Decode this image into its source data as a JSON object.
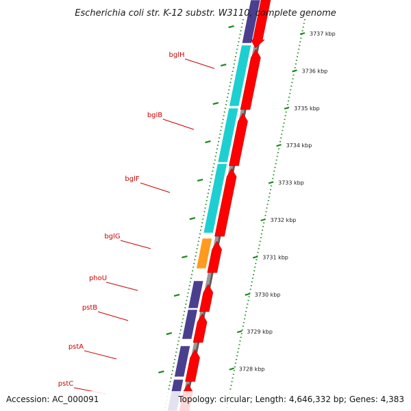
{
  "title": "Escherichia coli str. K-12 substr. W3110, complete genome",
  "footer": {
    "accession": "Accession: AC_000091",
    "summary": "Topology: circular; Length: 4,646,332 bp; Genes: 4,383"
  },
  "colors": {
    "forward_cds": "#ff0000",
    "cog_cyan": "#1ecfd2",
    "cog_purple": "#4a3f8f",
    "cog_orange": "#ff9a1e",
    "label": "#cc0000",
    "tick": "#1e8a1e",
    "backbone": "#888888"
  },
  "genes": [
    {
      "label": "bglH",
      "category_color": "cog_cyan"
    },
    {
      "label": "bglB",
      "category_color": "cog_cyan"
    },
    {
      "label": "bglF",
      "category_color": "cog_cyan"
    },
    {
      "label": "bglG",
      "category_color": "cog_orange"
    },
    {
      "label": "phoU",
      "category_color": "cog_purple"
    },
    {
      "label": "pstB",
      "category_color": "cog_purple"
    },
    {
      "label": "pstA",
      "category_color": "cog_purple"
    },
    {
      "label": "pstC",
      "category_color": "cog_purple"
    }
  ],
  "ticks": [
    {
      "label": "3737 kbp"
    },
    {
      "label": "3736 kbp"
    },
    {
      "label": "3735 kbp"
    },
    {
      "label": "3734 kbp"
    },
    {
      "label": "3733 kbp"
    },
    {
      "label": "3732 kbp"
    },
    {
      "label": "3731 kbp"
    },
    {
      "label": "3730 kbp"
    },
    {
      "label": "3729 kbp"
    },
    {
      "label": "3728 kbp"
    }
  ]
}
